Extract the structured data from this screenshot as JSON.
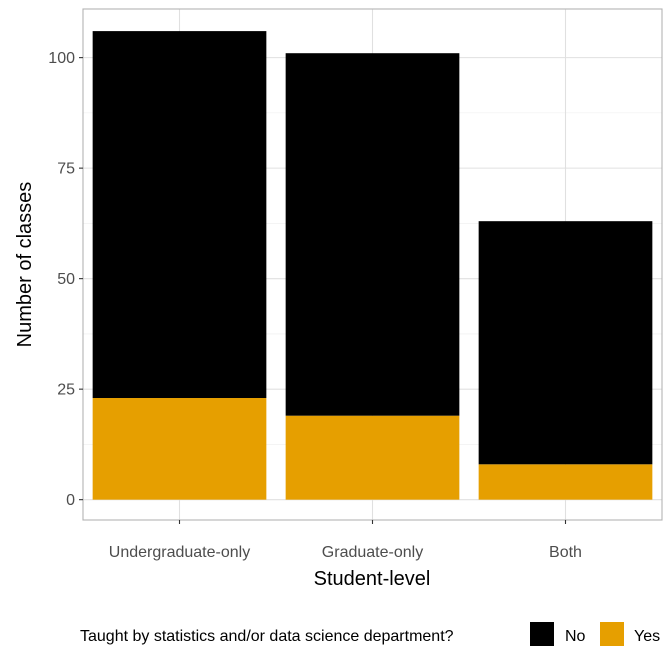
{
  "chart_data": {
    "type": "bar",
    "stacked": true,
    "categories": [
      "Undergraduate-only",
      "Graduate-only",
      "Both"
    ],
    "series": [
      {
        "name": "No",
        "values": [
          83,
          82,
          55
        ],
        "color": "#000000"
      },
      {
        "name": "Yes",
        "values": [
          23,
          19,
          8
        ],
        "color": "#E69F00"
      }
    ],
    "xlabel": "Student-level",
    "ylabel": "Number of classes",
    "yticks": [
      0,
      25,
      50,
      75,
      100
    ],
    "ylim": [
      -4.6,
      111
    ],
    "grid": true,
    "legend": {
      "title": "Taught by statistics and/or data science department?",
      "position": "bottom"
    }
  }
}
